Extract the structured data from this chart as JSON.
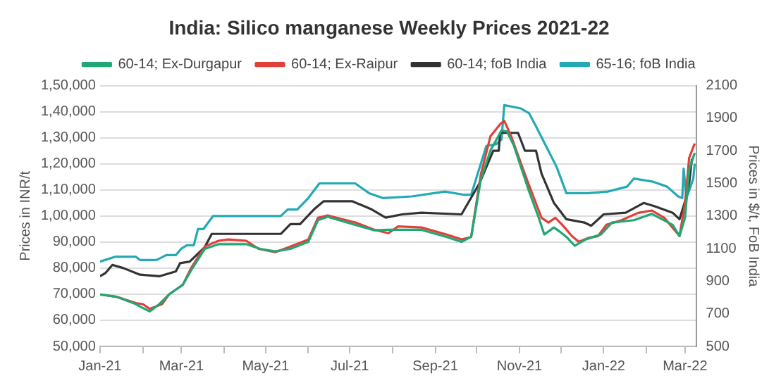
{
  "chart_data": {
    "type": "line",
    "title": "India: Silico manganese Weekly Prices 2021-22",
    "xlabel": null,
    "ylabel": "Prices in INR/t",
    "y2label": "Prices in $/t, FoB India",
    "xlim": [
      "2021-01-01",
      "2022-03-09"
    ],
    "xticks": [
      {
        "value": "2021-01-01",
        "label": "Jan-21"
      },
      {
        "value": "2021-02-01",
        "label": null
      },
      {
        "value": "2021-03-01",
        "label": "Mar-21"
      },
      {
        "value": "2021-04-01",
        "label": null
      },
      {
        "value": "2021-05-01",
        "label": "May-21"
      },
      {
        "value": "2021-06-01",
        "label": null
      },
      {
        "value": "2021-07-01",
        "label": "Jul-21"
      },
      {
        "value": "2021-08-01",
        "label": null
      },
      {
        "value": "2021-09-01",
        "label": "Sep-21"
      },
      {
        "value": "2021-10-01",
        "label": null
      },
      {
        "value": "2021-11-01",
        "label": "Nov-21"
      },
      {
        "value": "2021-12-01",
        "label": null
      },
      {
        "value": "2022-01-01",
        "label": "Jan-22"
      },
      {
        "value": "2022-02-01",
        "label": null
      },
      {
        "value": "2022-03-01",
        "label": "Mar-22"
      }
    ],
    "ylim": [
      50000,
      150000
    ],
    "yticks": [
      {
        "value": 50000,
        "label": "50,000"
      },
      {
        "value": 60000,
        "label": "60,000"
      },
      {
        "value": 70000,
        "label": "70,000"
      },
      {
        "value": 80000,
        "label": "80,000"
      },
      {
        "value": 90000,
        "label": "90,000"
      },
      {
        "value": 100000,
        "label": "1,00,000"
      },
      {
        "value": 110000,
        "label": "1,10,000"
      },
      {
        "value": 120000,
        "label": "1,20,000"
      },
      {
        "value": 130000,
        "label": "1,30,000"
      },
      {
        "value": 140000,
        "label": "1,40,000"
      },
      {
        "value": 150000,
        "label": "1,50,000"
      }
    ],
    "y2lim": [
      500,
      2100
    ],
    "y2ticks": [
      500,
      700,
      900,
      1100,
      1300,
      1500,
      1700,
      1900,
      2100
    ],
    "grid": "y",
    "legend": "top",
    "marker": "none",
    "line_style": "solid",
    "series": [
      {
        "name": "60-14; Ex-Durgapur",
        "color": "#1fa774",
        "x": [
          "2021-01-01",
          "2021-01-13",
          "2021-01-27",
          "2021-01-30",
          "2021-02-06",
          "2021-02-13",
          "2021-02-20",
          "2021-03-02",
          "2021-03-08",
          "2021-03-18",
          "2021-03-28",
          "2021-04-17",
          "2021-04-27",
          "2021-05-08",
          "2021-05-19",
          "2021-06-01",
          "2021-06-08",
          "2021-06-15",
          "2021-07-05",
          "2021-07-19",
          "2021-07-29",
          "2021-08-22",
          "2021-09-09",
          "2021-09-20",
          "2021-09-27",
          "2021-10-04",
          "2021-10-11",
          "2021-10-19",
          "2021-10-23",
          "2021-10-28",
          "2021-11-08",
          "2021-11-15",
          "2021-11-19",
          "2021-11-26",
          "2021-12-01",
          "2021-12-05",
          "2021-12-11",
          "2021-12-19",
          "2021-12-30",
          "2022-01-07",
          "2022-01-23",
          "2022-02-05",
          "2022-02-20",
          "2022-02-25",
          "2022-03-01",
          "2022-03-04",
          "2022-03-08"
        ],
        "values": [
          69900,
          69000,
          66200,
          65300,
          63400,
          66200,
          69900,
          73600,
          79100,
          87400,
          89200,
          89200,
          87400,
          86400,
          87400,
          90100,
          98400,
          99700,
          96600,
          94500,
          94700,
          94700,
          92000,
          90100,
          92000,
          114000,
          125100,
          132800,
          132400,
          126900,
          109400,
          99300,
          92900,
          95600,
          93700,
          92000,
          88600,
          91000,
          92900,
          97500,
          98400,
          100800,
          96600,
          92300,
          99300,
          117700,
          124200
        ]
      },
      {
        "name": "60-14; Ex-Raipur",
        "color": "#e0403a",
        "x": [
          "2021-01-01",
          "2021-01-13",
          "2021-01-27",
          "2021-02-01",
          "2021-02-06",
          "2021-02-15",
          "2021-02-20",
          "2021-03-02",
          "2021-03-08",
          "2021-03-18",
          "2021-03-28",
          "2021-04-04",
          "2021-04-17",
          "2021-04-26",
          "2021-05-08",
          "2021-05-19",
          "2021-06-01",
          "2021-06-08",
          "2021-06-15",
          "2021-07-05",
          "2021-07-19",
          "2021-07-29",
          "2021-08-05",
          "2021-08-22",
          "2021-09-09",
          "2021-09-20",
          "2021-09-27",
          "2021-10-04",
          "2021-10-11",
          "2021-10-18",
          "2021-10-21",
          "2021-10-26",
          "2021-11-05",
          "2021-11-13",
          "2021-11-17",
          "2021-11-22",
          "2021-11-27",
          "2021-12-02",
          "2021-12-09",
          "2021-12-14",
          "2021-12-21",
          "2021-12-28",
          "2022-01-03",
          "2022-01-14",
          "2022-01-26",
          "2022-02-05",
          "2022-02-14",
          "2022-02-25",
          "2022-03-01",
          "2022-03-04",
          "2022-03-08"
        ],
        "values": [
          69900,
          69000,
          66600,
          66200,
          64400,
          66200,
          69900,
          73600,
          80000,
          88300,
          90500,
          91000,
          90500,
          87400,
          86100,
          88300,
          91000,
          99300,
          100200,
          97500,
          94700,
          93400,
          96000,
          95600,
          92900,
          91000,
          91900,
          115900,
          130600,
          135200,
          136500,
          130600,
          115900,
          104800,
          99300,
          97500,
          99300,
          96600,
          92300,
          90100,
          91600,
          92300,
          96600,
          98400,
          101200,
          102100,
          99300,
          92300,
          104800,
          122300,
          127800
        ]
      },
      {
        "name": "60-14; foB India",
        "color": "#333333",
        "axis": "y2",
        "x": [
          "2021-01-01",
          "2021-01-05",
          "2021-01-10",
          "2021-01-18",
          "2021-01-30",
          "2021-02-13",
          "2021-02-25",
          "2021-02-28",
          "2021-03-07",
          "2021-03-18",
          "2021-03-23",
          "2021-05-12",
          "2021-05-19",
          "2021-05-26",
          "2021-06-05",
          "2021-06-12",
          "2021-07-03",
          "2021-07-17",
          "2021-07-27",
          "2021-08-08",
          "2021-08-22",
          "2021-09-20",
          "2021-10-03",
          "2021-10-13",
          "2021-10-17",
          "2021-10-18",
          "2021-10-31",
          "2021-11-05",
          "2021-11-13",
          "2021-11-17",
          "2021-11-26",
          "2021-12-05",
          "2021-12-18",
          "2021-12-23",
          "2022-01-01",
          "2022-01-17",
          "2022-01-30",
          "2022-02-07",
          "2022-02-20",
          "2022-02-25",
          "2022-03-01",
          "2022-03-04",
          "2022-03-06"
        ],
        "values": [
          930,
          950,
          1000,
          980,
          940,
          930,
          960,
          1010,
          1020,
          1110,
          1190,
          1190,
          1250,
          1250,
          1340,
          1390,
          1390,
          1340,
          1290,
          1310,
          1320,
          1310,
          1500,
          1700,
          1700,
          1810,
          1810,
          1700,
          1700,
          1560,
          1380,
          1280,
          1260,
          1240,
          1310,
          1320,
          1380,
          1360,
          1320,
          1280,
          1390,
          1500,
          1650
        ]
      },
      {
        "name": "65-16; foB India",
        "color": "#22aab5",
        "axis": "y2",
        "x": [
          "2021-01-01",
          "2021-01-12",
          "2021-01-27",
          "2021-01-30",
          "2021-02-11",
          "2021-02-18",
          "2021-02-25",
          "2021-03-01",
          "2021-03-05",
          "2021-03-10",
          "2021-03-13",
          "2021-03-17",
          "2021-03-24",
          "2021-05-12",
          "2021-05-17",
          "2021-05-24",
          "2021-06-01",
          "2021-06-09",
          "2021-07-05",
          "2021-07-15",
          "2021-07-25",
          "2021-08-15",
          "2021-09-08",
          "2021-09-22",
          "2021-09-27",
          "2021-10-08",
          "2021-10-15",
          "2021-10-19",
          "2021-10-21",
          "2021-11-02",
          "2021-11-08",
          "2021-11-13",
          "2021-11-22",
          "2021-11-28",
          "2021-12-05",
          "2021-12-11",
          "2021-12-21",
          "2022-01-04",
          "2022-01-18",
          "2022-01-23",
          "2022-02-06",
          "2022-02-16",
          "2022-02-24",
          "2022-02-27",
          "2022-02-28",
          "2022-03-02",
          "2022-03-05",
          "2022-03-07",
          "2022-03-08"
        ],
        "values": [
          1020,
          1050,
          1050,
          1030,
          1030,
          1060,
          1060,
          1100,
          1120,
          1120,
          1220,
          1220,
          1300,
          1300,
          1340,
          1340,
          1410,
          1500,
          1500,
          1440,
          1410,
          1420,
          1450,
          1430,
          1430,
          1730,
          1740,
          1770,
          1980,
          1960,
          1930,
          1850,
          1700,
          1600,
          1440,
          1440,
          1440,
          1450,
          1480,
          1530,
          1510,
          1480,
          1420,
          1410,
          1590,
          1410,
          1480,
          1530,
          1620
        ]
      }
    ]
  }
}
